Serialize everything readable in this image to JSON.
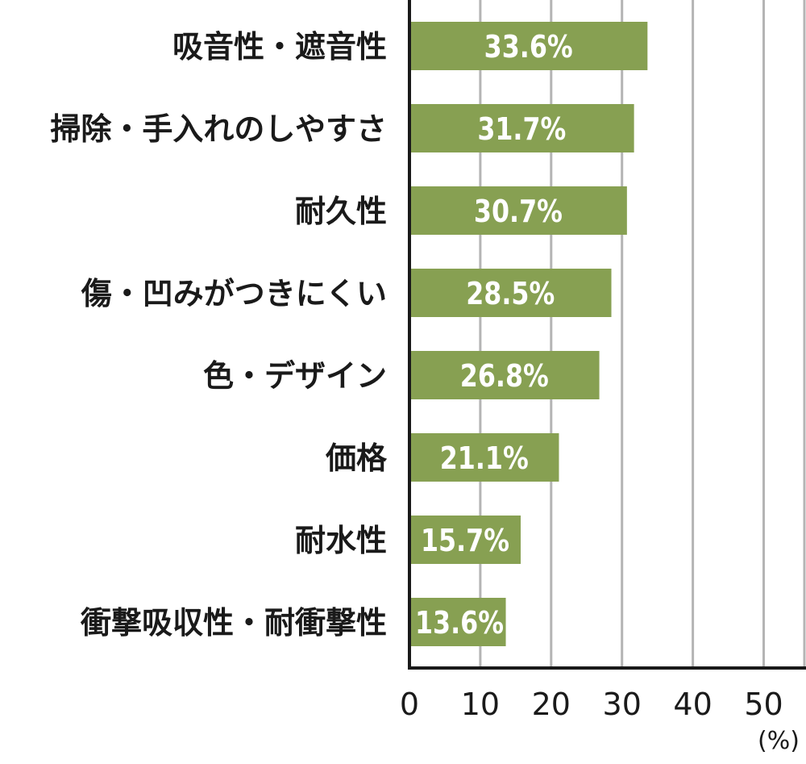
{
  "chart_data": {
    "type": "bar",
    "orientation": "horizontal",
    "categories": [
      "吸音性・遮音性",
      "掃除・手入れのしやすさ",
      "耐久性",
      "傷・凹みがつきにくい",
      "色・デザイン",
      "価格",
      "耐水性",
      "衝撃吸収性・耐衝撃性"
    ],
    "values": [
      33.6,
      31.7,
      30.7,
      28.5,
      26.8,
      21.1,
      15.7,
      13.6
    ],
    "data_labels": [
      "33.6%",
      "31.7%",
      "30.7%",
      "28.5%",
      "26.8%",
      "21.1%",
      "15.7%",
      "13.6%"
    ],
    "xlim": [
      0,
      55
    ],
    "x_ticks": [
      0,
      10,
      20,
      30,
      40,
      50
    ],
    "x_tick_labels": [
      "0",
      "10",
      "20",
      "30",
      "40",
      "50"
    ],
    "xlabel": "(%)",
    "grid": true,
    "bar_color": "#87a052",
    "grid_color": "#b4b4b4",
    "axis_color": "#1a1a1a"
  }
}
